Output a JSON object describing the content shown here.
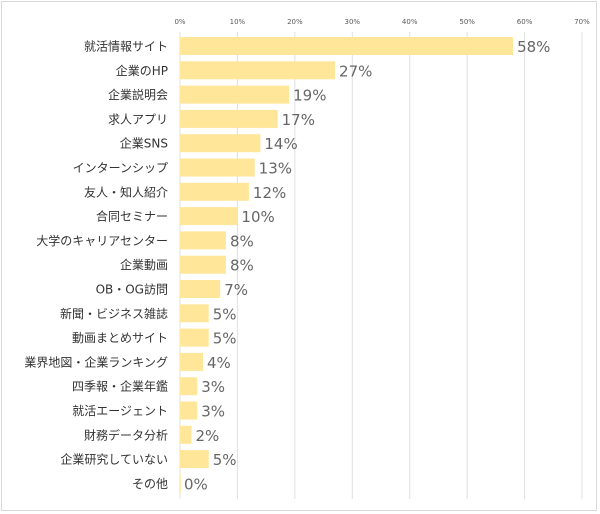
{
  "chart_data": {
    "type": "bar",
    "orientation": "horizontal",
    "categories": [
      "就活情報サイト",
      "企業のHP",
      "企業説明会",
      "求人アプリ",
      "企業SNS",
      "インターンシップ",
      "友人・知人紹介",
      "合同セミナー",
      "大学のキャリアセンター",
      "企業動画",
      "OB・OG訪問",
      "新聞・ビジネス雑誌",
      "動画まとめサイト",
      "業界地図・企業ランキング",
      "四季報・企業年鑑",
      "就活エージェント",
      "財務データ分析",
      "企業研究していない",
      "その他"
    ],
    "values": [
      58,
      27,
      19,
      17,
      14,
      13,
      12,
      10,
      8,
      8,
      7,
      5,
      5,
      4,
      3,
      3,
      2,
      5,
      0
    ],
    "value_labels": [
      "58%",
      "27%",
      "19%",
      "17%",
      "14%",
      "13%",
      "12%",
      "10%",
      "8%",
      "8%",
      "7%",
      "5%",
      "5%",
      "4%",
      "3%",
      "3%",
      "2%",
      "5%",
      "0%"
    ],
    "xlim": [
      0,
      70
    ],
    "xticks": [
      0,
      10,
      20,
      30,
      40,
      50,
      60,
      70
    ],
    "xtick_labels": [
      "0%",
      "10%",
      "20%",
      "30%",
      "40%",
      "50%",
      "60%",
      "70%"
    ],
    "x_axis_position": "top",
    "grid": true,
    "legend": "none",
    "bar_color": "#ffe699",
    "grid_color": "#e0e0e0",
    "title": "",
    "xlabel": "",
    "ylabel": ""
  }
}
